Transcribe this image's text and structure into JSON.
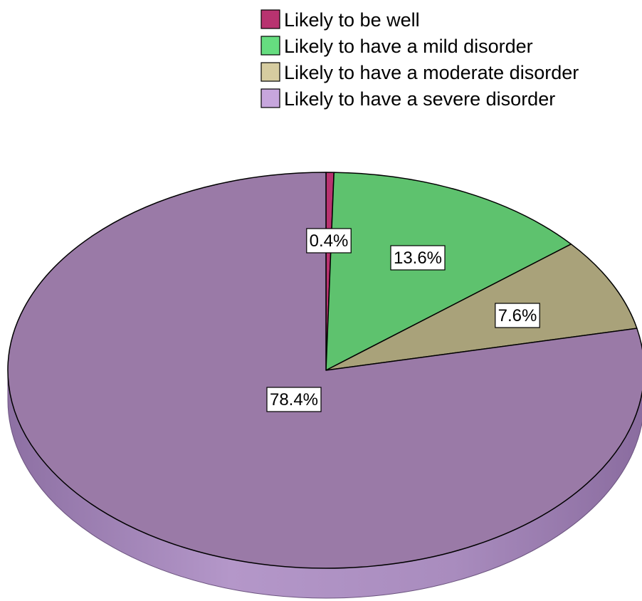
{
  "chart_data": {
    "type": "pie",
    "title": "",
    "categories": [
      "Likely to be well",
      "Likely to have a mild disorder",
      "Likely to have a moderate disorder",
      "Likely to have a severe disorder"
    ],
    "values": [
      0.4,
      13.6,
      7.6,
      78.4
    ],
    "labels": [
      "0.4%",
      "13.6%",
      "7.6%",
      "78.4%"
    ],
    "colors": [
      "#b83370",
      "#5ec26e",
      "#a9a27a",
      "#9a7aa7"
    ],
    "legend_swatch_colors": [
      "#b83370",
      "#66dd80",
      "#d6cca0",
      "#c7a6dd"
    ],
    "legend_position": "top-right",
    "three_d": true,
    "start_angle": "12 o'clock",
    "direction": "clockwise"
  }
}
